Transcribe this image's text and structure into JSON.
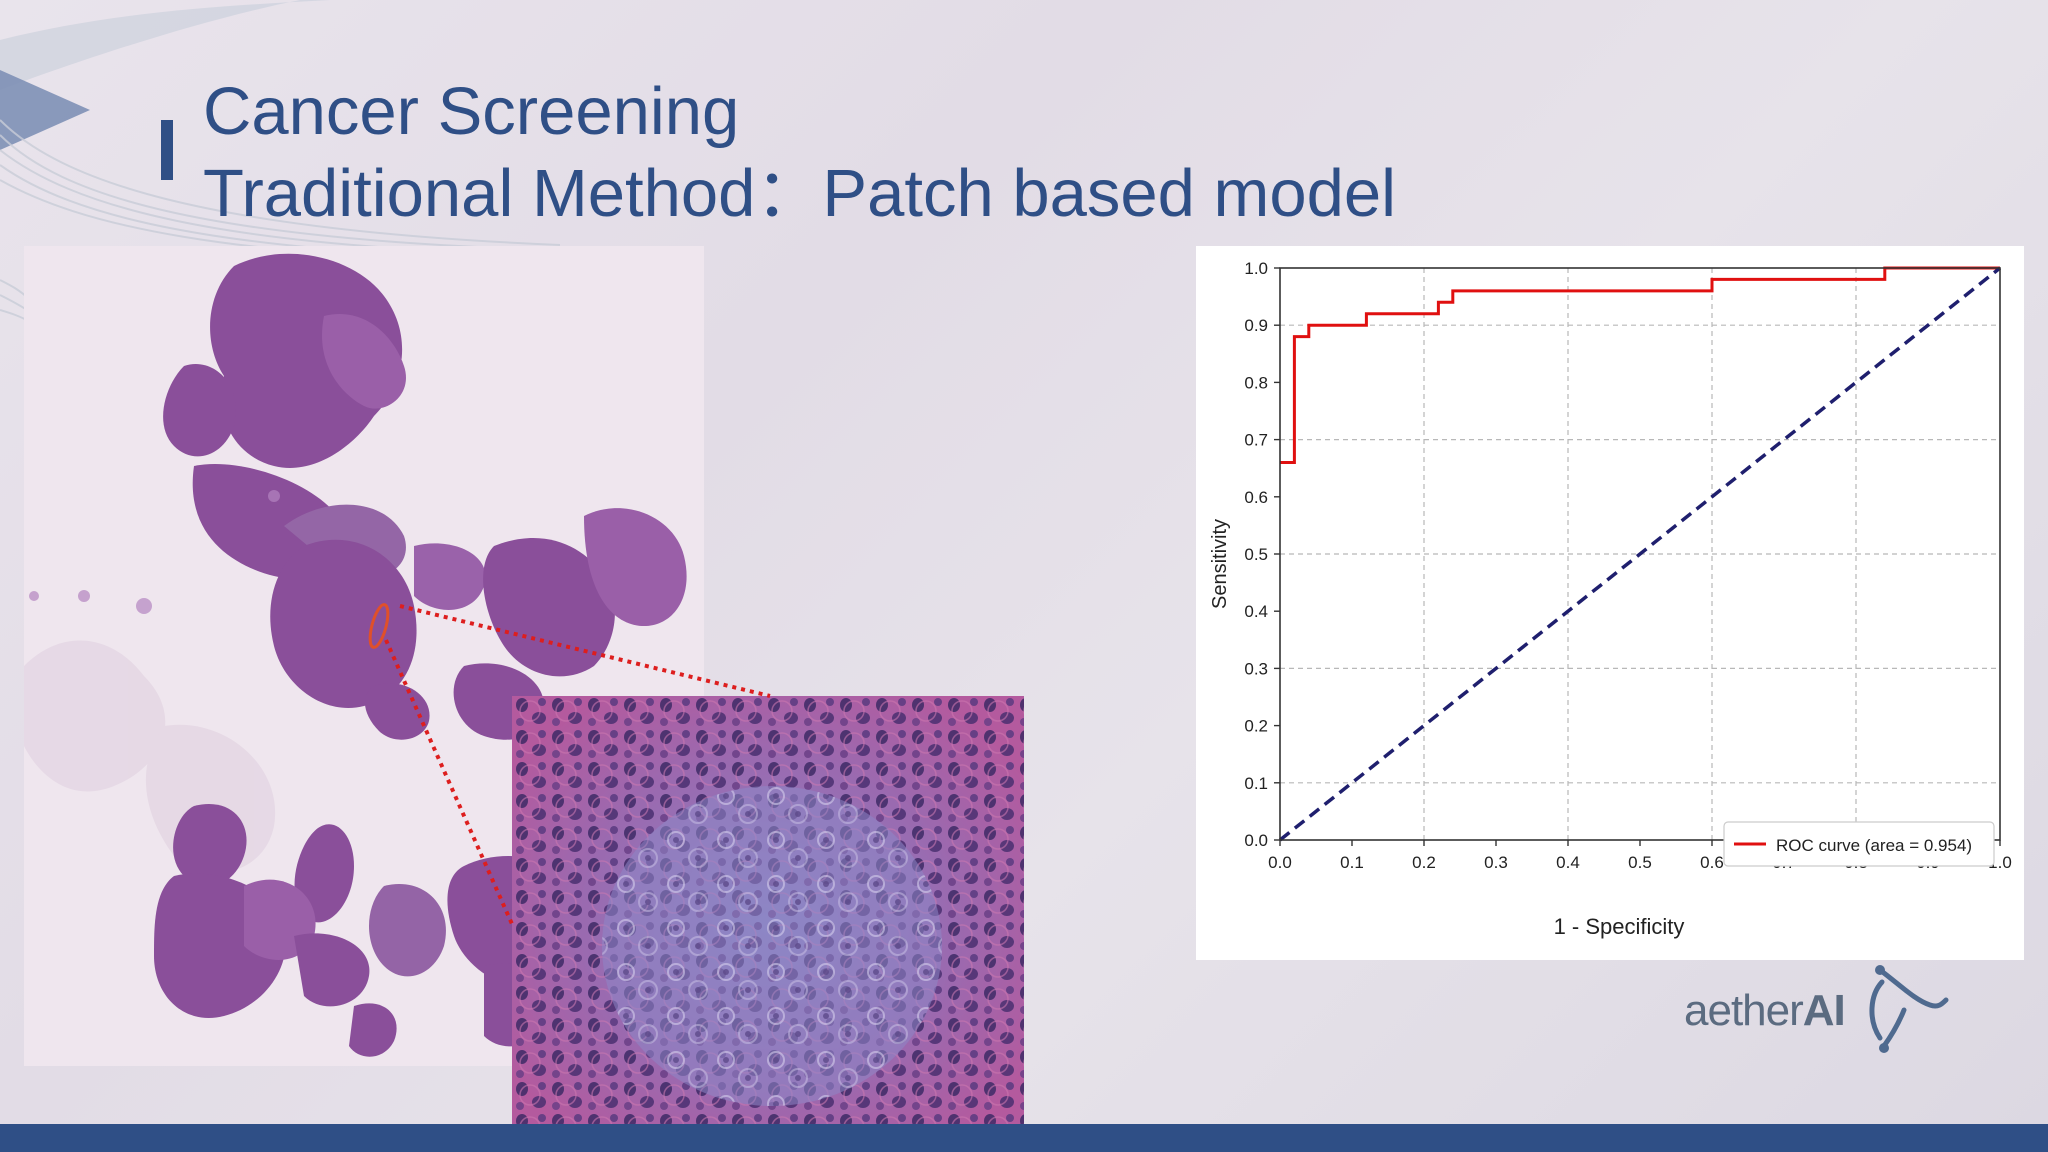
{
  "slide": {
    "title_line1": "Cancer Screening",
    "title_line2": "Traditional Method：Patch based model",
    "accent_color": "#2f4f86"
  },
  "logo": {
    "text_light": "aether",
    "text_bold": "AI",
    "mark_icon": "aetherai-logo-mark"
  },
  "images": {
    "slide_image": "whole-slide-tissue-image",
    "patch_image": "zoomed-patch-image"
  },
  "chart_data": {
    "type": "line",
    "xlabel": "1 - Specificity",
    "ylabel": "Sensitivity",
    "xlim": [
      0.0,
      1.0
    ],
    "ylim": [
      0.0,
      1.0
    ],
    "xticks": [
      "0.0",
      "0.1",
      "0.2",
      "0.3",
      "0.4",
      "0.5",
      "0.6",
      "0.7",
      "0.8",
      "0.9",
      "1.0"
    ],
    "yticks": [
      "0.0",
      "0.1",
      "0.2",
      "0.3",
      "0.4",
      "0.5",
      "0.6",
      "0.7",
      "0.8",
      "0.9",
      "1.0"
    ],
    "grid": true,
    "legend_position": "bottom-right",
    "series": [
      {
        "name": "ROC curve (area = 0.954)",
        "color": "#e01010",
        "style": "step",
        "points": [
          [
            0.0,
            0.66
          ],
          [
            0.02,
            0.66
          ],
          [
            0.02,
            0.88
          ],
          [
            0.04,
            0.88
          ],
          [
            0.04,
            0.9
          ],
          [
            0.12,
            0.9
          ],
          [
            0.12,
            0.92
          ],
          [
            0.22,
            0.92
          ],
          [
            0.22,
            0.94
          ],
          [
            0.24,
            0.94
          ],
          [
            0.24,
            0.96
          ],
          [
            0.6,
            0.96
          ],
          [
            0.6,
            0.98
          ],
          [
            0.84,
            0.98
          ],
          [
            0.84,
            1.0
          ],
          [
            1.0,
            1.0
          ]
        ]
      },
      {
        "name": "",
        "color": "#1f1f6e",
        "style": "dashed",
        "points": [
          [
            0.0,
            0.0
          ],
          [
            1.0,
            1.0
          ]
        ]
      }
    ]
  }
}
